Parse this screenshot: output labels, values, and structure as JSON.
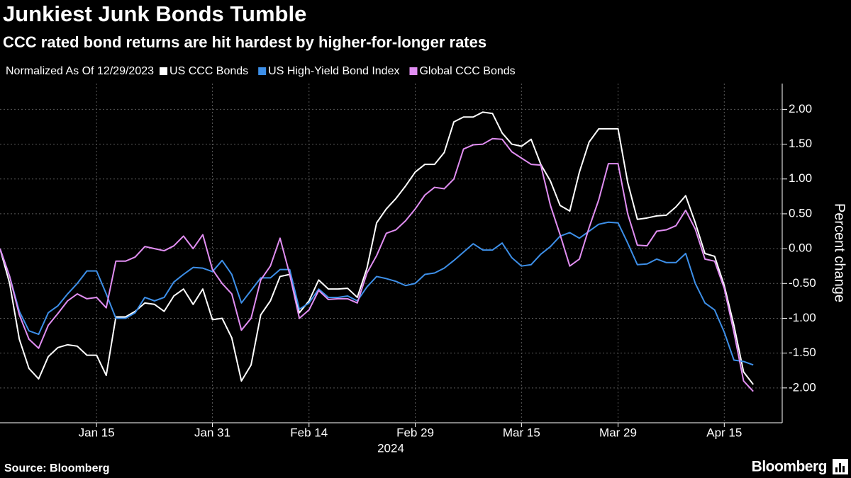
{
  "chart_data": {
    "type": "line",
    "title": "Junkiest Junk Bonds Tumble",
    "subtitle": "CCC rated bond returns are hit hardest by higher-for-longer rates",
    "legend_title": "Normalized As Of 12/29/2023",
    "ylabel": "Percent change",
    "xlabel": "2024",
    "source": "Source: Bloomberg",
    "logo": "Bloomberg",
    "grid": true,
    "categories": [
      null,
      null,
      null,
      null,
      null,
      null,
      null,
      null,
      null,
      null,
      "Jan 15",
      null,
      null,
      null,
      null,
      null,
      null,
      null,
      null,
      null,
      null,
      null,
      "Jan 31",
      null,
      null,
      null,
      null,
      null,
      null,
      null,
      null,
      null,
      "Feb 14",
      null,
      null,
      null,
      null,
      null,
      null,
      null,
      null,
      null,
      null,
      "Feb 29",
      null,
      null,
      null,
      null,
      null,
      null,
      null,
      null,
      null,
      null,
      "Mar 15",
      null,
      null,
      null,
      null,
      null,
      null,
      null,
      null,
      null,
      "Mar 29",
      null,
      null,
      null,
      null,
      null,
      null,
      null,
      null,
      null,
      null,
      "Apr 15",
      null,
      null,
      null
    ],
    "series": [
      {
        "name": "US CCC Bonds",
        "color": "#ffffff",
        "values": [
          0,
          -0.5,
          -1.3,
          -1.72,
          -1.87,
          -1.55,
          -1.42,
          -1.38,
          -1.4,
          -1.53,
          -1.53,
          -1.82,
          -0.98,
          -0.98,
          -0.9,
          -0.78,
          -0.8,
          -0.9,
          -0.68,
          -0.58,
          -0.8,
          -0.58,
          -1.02,
          -1.0,
          -1.28,
          -1.9,
          -1.67,
          -0.95,
          -0.75,
          -0.4,
          -0.37,
          -0.92,
          -0.75,
          -0.45,
          -0.58,
          -0.58,
          -0.57,
          -0.7,
          -0.28,
          0.37,
          0.57,
          0.72,
          0.9,
          1.1,
          1.21,
          1.21,
          1.38,
          1.82,
          1.89,
          1.89,
          1.96,
          1.94,
          1.66,
          1.5,
          1.47,
          1.57,
          1.21,
          0.97,
          0.62,
          0.54,
          1.1,
          1.53,
          1.72,
          1.72,
          1.72,
          0.95,
          0.42,
          0.44,
          0.47,
          0.48,
          0.6,
          0.76,
          0.37,
          -0.07,
          -0.11,
          -0.53,
          -1.1,
          -1.77,
          -1.95
        ]
      },
      {
        "name": "US High-Yield Bond Index",
        "color": "#3d8fe8",
        "values": [
          0,
          -0.4,
          -0.9,
          -1.18,
          -1.23,
          -0.92,
          -0.82,
          -0.65,
          -0.5,
          -0.32,
          -0.32,
          -0.65,
          -1.0,
          -1.0,
          -0.92,
          -0.7,
          -0.75,
          -0.7,
          -0.48,
          -0.37,
          -0.27,
          -0.28,
          -0.33,
          -0.17,
          -0.37,
          -0.78,
          -0.6,
          -0.42,
          -0.42,
          -0.3,
          -0.3,
          -0.87,
          -0.78,
          -0.58,
          -0.7,
          -0.7,
          -0.68,
          -0.75,
          -0.55,
          -0.4,
          -0.43,
          -0.47,
          -0.53,
          -0.5,
          -0.37,
          -0.35,
          -0.28,
          -0.17,
          -0.05,
          0.07,
          -0.02,
          -0.02,
          0.08,
          -0.13,
          -0.25,
          -0.23,
          -0.08,
          0.03,
          0.18,
          0.23,
          0.15,
          0.25,
          0.35,
          0.38,
          0.37,
          0.08,
          -0.23,
          -0.22,
          -0.15,
          -0.2,
          -0.2,
          -0.07,
          -0.5,
          -0.78,
          -0.88,
          -1.2,
          -1.6,
          -1.62,
          -1.67
        ]
      },
      {
        "name": "Global CCC Bonds",
        "color": "#e18ef2",
        "values": [
          0,
          -0.4,
          -0.95,
          -1.3,
          -1.43,
          -1.1,
          -0.93,
          -0.75,
          -0.65,
          -0.72,
          -0.7,
          -0.85,
          -0.18,
          -0.18,
          -0.12,
          0.03,
          0.0,
          -0.03,
          0.04,
          0.18,
          0.0,
          0.2,
          -0.3,
          -0.5,
          -0.65,
          -1.17,
          -1.0,
          -0.45,
          -0.25,
          0.15,
          -0.37,
          -1.0,
          -0.88,
          -0.6,
          -0.73,
          -0.72,
          -0.72,
          -0.78,
          -0.35,
          -0.1,
          0.22,
          0.27,
          0.4,
          0.57,
          0.77,
          0.88,
          0.86,
          1.0,
          1.43,
          1.49,
          1.5,
          1.58,
          1.57,
          1.39,
          1.3,
          1.21,
          1.2,
          0.62,
          0.2,
          -0.25,
          -0.15,
          0.3,
          0.7,
          1.22,
          1.22,
          0.5,
          0.05,
          0.04,
          0.25,
          0.27,
          0.33,
          0.55,
          0.28,
          -0.15,
          -0.18,
          -0.57,
          -1.2,
          -1.9,
          -2.05
        ]
      }
    ],
    "ylim": [
      -2.5,
      2.37
    ],
    "yticks": [
      {
        "value": 2,
        "label": "2.00"
      },
      {
        "value": 1.5,
        "label": "1.50"
      },
      {
        "value": 1,
        "label": "1.00"
      },
      {
        "value": 0.5,
        "label": "0.50"
      },
      {
        "value": 0,
        "label": "0.00"
      },
      {
        "value": -0.5,
        "label": "-0.50"
      },
      {
        "value": -1,
        "label": "-1.00"
      },
      {
        "value": -1.5,
        "label": "-1.50"
      },
      {
        "value": -2,
        "label": "-2.00"
      }
    ]
  }
}
